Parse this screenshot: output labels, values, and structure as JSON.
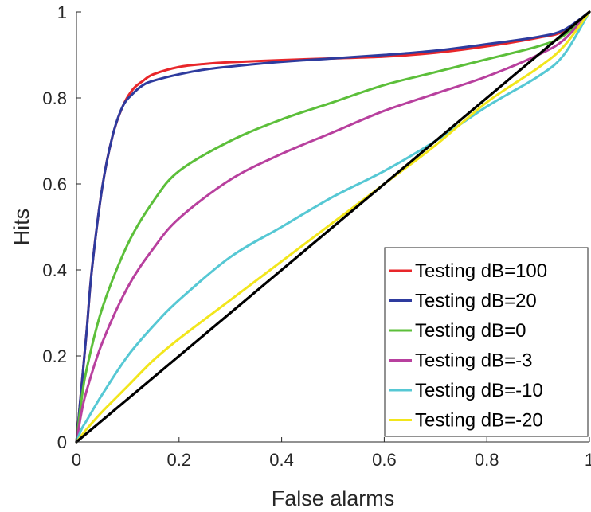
{
  "chart_data": {
    "type": "line",
    "title": "",
    "xlabel": "False alarms",
    "ylabel": "Hits",
    "xlim": [
      0,
      1
    ],
    "ylim": [
      0,
      1
    ],
    "xticks": [
      "0",
      "0.2",
      "0.4",
      "0.6",
      "0.8",
      "1"
    ],
    "yticks": [
      "0",
      "0.2",
      "0.4",
      "0.6",
      "0.8",
      "1"
    ],
    "grid": false,
    "legend_position": "bottom-right",
    "series": [
      {
        "name": "Testing dB=100",
        "color": "#e8262a",
        "x": [
          0,
          0.01,
          0.02,
          0.03,
          0.05,
          0.07,
          0.09,
          0.11,
          0.13,
          0.15,
          0.2,
          0.25,
          0.3,
          0.4,
          0.5,
          0.6,
          0.7,
          0.8,
          0.9,
          0.95,
          1
        ],
        "y": [
          0,
          0.13,
          0.26,
          0.4,
          0.59,
          0.71,
          0.78,
          0.82,
          0.84,
          0.855,
          0.872,
          0.879,
          0.883,
          0.888,
          0.892,
          0.896,
          0.905,
          0.92,
          0.94,
          0.955,
          1
        ]
      },
      {
        "name": "Testing dB=20",
        "color": "#2e3b9e",
        "x": [
          0,
          0.01,
          0.02,
          0.03,
          0.05,
          0.07,
          0.09,
          0.11,
          0.13,
          0.15,
          0.2,
          0.25,
          0.3,
          0.4,
          0.5,
          0.6,
          0.7,
          0.8,
          0.9,
          0.95,
          1
        ],
        "y": [
          0,
          0.13,
          0.26,
          0.4,
          0.59,
          0.71,
          0.78,
          0.81,
          0.83,
          0.84,
          0.855,
          0.866,
          0.873,
          0.884,
          0.892,
          0.9,
          0.91,
          0.925,
          0.942,
          0.958,
          1
        ]
      },
      {
        "name": "Testing dB=0",
        "color": "#5cbf3a",
        "x": [
          0,
          0.01,
          0.02,
          0.05,
          0.1,
          0.15,
          0.2,
          0.3,
          0.4,
          0.5,
          0.6,
          0.7,
          0.8,
          0.9,
          0.95,
          1
        ],
        "y": [
          0,
          0.1,
          0.17,
          0.31,
          0.46,
          0.56,
          0.63,
          0.7,
          0.75,
          0.79,
          0.83,
          0.86,
          0.89,
          0.92,
          0.945,
          1
        ]
      },
      {
        "name": "Testing dB=-3",
        "color": "#b8409e",
        "x": [
          0,
          0.01,
          0.02,
          0.05,
          0.1,
          0.15,
          0.2,
          0.3,
          0.4,
          0.5,
          0.6,
          0.7,
          0.8,
          0.9,
          0.95,
          1
        ],
        "y": [
          0,
          0.07,
          0.12,
          0.23,
          0.36,
          0.45,
          0.52,
          0.61,
          0.67,
          0.72,
          0.77,
          0.81,
          0.85,
          0.9,
          0.935,
          1
        ]
      },
      {
        "name": "Testing dB=-10",
        "color": "#56c8d4",
        "x": [
          0,
          0.01,
          0.02,
          0.05,
          0.1,
          0.15,
          0.2,
          0.3,
          0.4,
          0.5,
          0.6,
          0.7,
          0.8,
          0.9,
          0.95,
          1
        ],
        "y": [
          0,
          0.03,
          0.05,
          0.11,
          0.2,
          0.27,
          0.33,
          0.43,
          0.5,
          0.57,
          0.63,
          0.7,
          0.78,
          0.85,
          0.9,
          1
        ]
      },
      {
        "name": "Testing dB=-20",
        "color": "#f2e61c",
        "x": [
          0,
          0.01,
          0.02,
          0.05,
          0.1,
          0.15,
          0.2,
          0.3,
          0.4,
          0.5,
          0.6,
          0.7,
          0.8,
          0.9,
          0.95,
          1
        ],
        "y": [
          0,
          0.015,
          0.03,
          0.07,
          0.13,
          0.19,
          0.24,
          0.33,
          0.42,
          0.51,
          0.6,
          0.69,
          0.79,
          0.87,
          0.92,
          1
        ]
      },
      {
        "name": "",
        "color": "#000000",
        "x": [
          0,
          1
        ],
        "y": [
          0,
          1
        ]
      }
    ]
  }
}
